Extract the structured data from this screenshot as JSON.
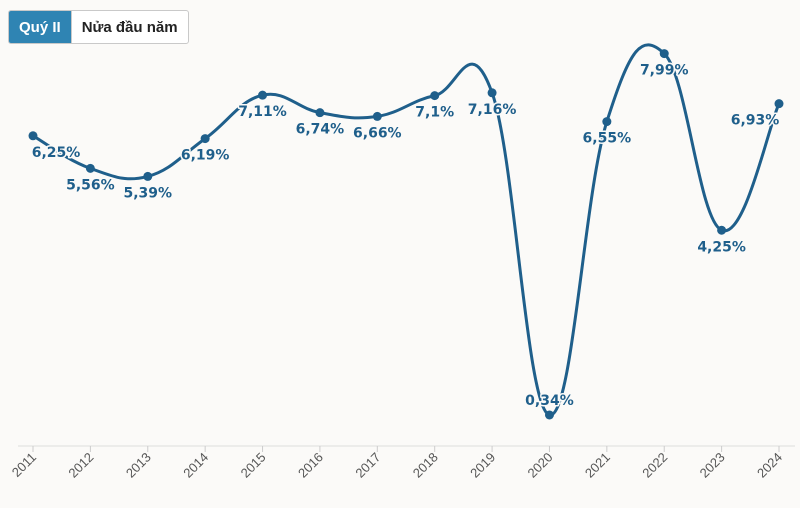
{
  "tabs": [
    {
      "label": "Quý II",
      "active": true
    },
    {
      "label": "Nửa đầu năm",
      "active": false
    }
  ],
  "colors": {
    "line": "#1f5f8b",
    "label": "#1f5f8b",
    "tab_active_bg": "#2f84b3",
    "background": "#fbfaf8",
    "axis": "#dddddd"
  },
  "chart_data": {
    "type": "line",
    "x": [
      "2011",
      "2012",
      "2013",
      "2014",
      "2015",
      "2016",
      "2017",
      "2018",
      "2019",
      "2020",
      "2021",
      "2022",
      "2023",
      "2024"
    ],
    "values": [
      6.25,
      5.56,
      5.39,
      6.19,
      7.11,
      6.74,
      6.66,
      7.1,
      7.16,
      0.34,
      6.55,
      7.99,
      4.25,
      6.93
    ],
    "data_labels": [
      "6,25%",
      "5,56%",
      "5,39%",
      "6,19%",
      "7,11%",
      "6,74%",
      "6,66%",
      "7,1%",
      "7,16%",
      "0,34%",
      "6,55%",
      "7,99%",
      "4,25%",
      "6,93%"
    ],
    "label_position": [
      "below",
      "below",
      "below",
      "below",
      "below",
      "below",
      "below",
      "below",
      "below",
      "above",
      "below",
      "below",
      "below",
      "left"
    ],
    "ylim": [
      0,
      8.5
    ],
    "grid": false,
    "title": "",
    "xlabel": "",
    "ylabel": ""
  }
}
